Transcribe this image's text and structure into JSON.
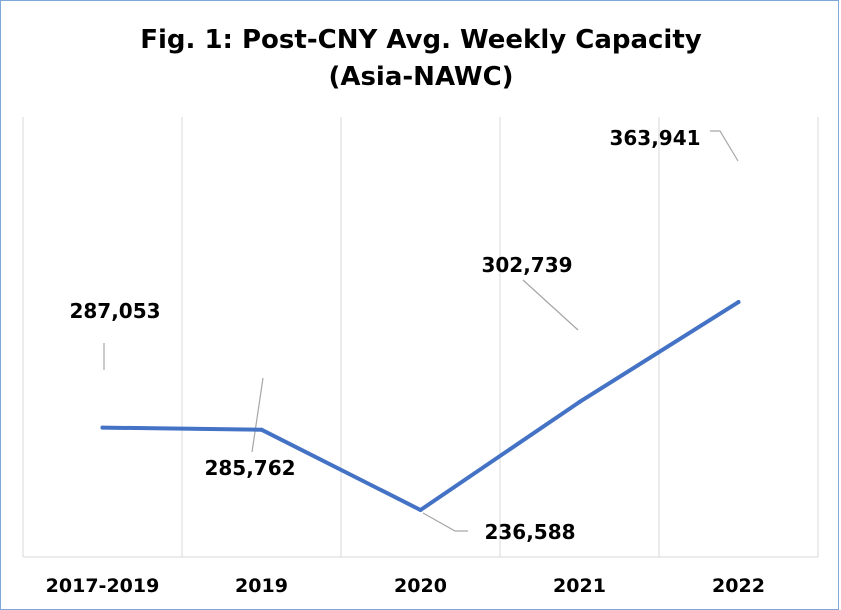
{
  "chart_data": {
    "type": "line",
    "title": "Fig. 1: Post-CNY Avg. Weekly Capacity",
    "subtitle": "(Asia-NAWC)",
    "xlabel": "",
    "ylabel": "",
    "categories": [
      "2017-2019",
      "2019",
      "2020",
      "2021",
      "2022"
    ],
    "series": [
      {
        "values": [
          287053,
          285762,
          236588,
          302739,
          363941
        ],
        "labels": [
          "287,053",
          "285,762",
          "236,588",
          "302,739",
          "363,941"
        ]
      }
    ],
    "ylim": [
      200000,
      375000
    ],
    "grid": {
      "vertical": true,
      "horizontal": false
    },
    "legend": "none",
    "colors": {
      "line": "#4472c4",
      "grid": "#d9d9d9",
      "leader": "#a6a6a6",
      "frame": "#7fa7d8"
    }
  }
}
